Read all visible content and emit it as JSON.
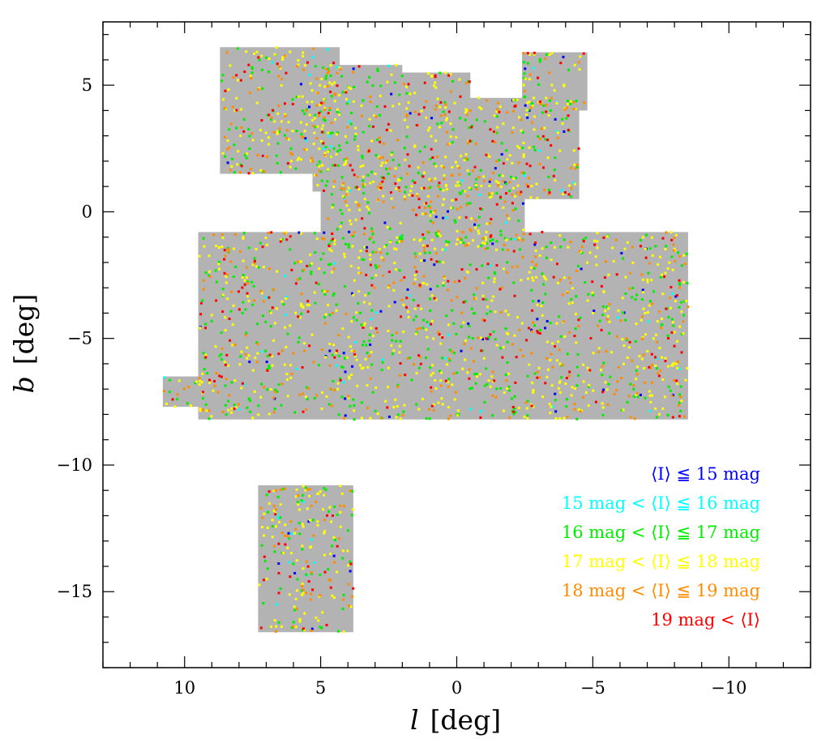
{
  "chart_data": {
    "type": "scatter",
    "xlabel": "l",
    "xlabel_unit": "[deg]",
    "ylabel": "b",
    "ylabel_unit": "[deg]",
    "xlim": [
      13,
      -13
    ],
    "ylim": [
      -18,
      7.5
    ],
    "x_reversed": true,
    "xticks": [
      10,
      5,
      0,
      -5,
      -10
    ],
    "xtick_labels": [
      "10",
      "5",
      "0",
      "−5",
      "−10"
    ],
    "yticks": [
      5,
      0,
      -5,
      -10,
      -15
    ],
    "ytick_labels": [
      "5",
      "0",
      "−5",
      "−10",
      "−15"
    ],
    "footprint_color": "#b3b3b3",
    "legend_position": "lower-right",
    "series": [
      {
        "name": "⟨I⟩ ≦ 15 mag",
        "color": "#0000ff"
      },
      {
        "name": "15 mag < ⟨I⟩ ≦ 16 mag",
        "color": "#00ffff"
      },
      {
        "name": "16 mag < ⟨I⟩ ≦ 17 mag",
        "color": "#00ee00"
      },
      {
        "name": "17 mag < ⟨I⟩ ≦ 18 mag",
        "color": "#ffff00"
      },
      {
        "name": "18 mag < ⟨I⟩ ≦ 19 mag",
        "color": "#ff8c00"
      },
      {
        "name": "19 mag < ⟨I⟩",
        "color": "#ff0000"
      }
    ],
    "footprint_regions": [
      {
        "l": [
          8.7,
          4.3
        ],
        "b": [
          1.5,
          6.5
        ]
      },
      {
        "l": [
          5.3,
          2.0
        ],
        "b": [
          0.8,
          5.8
        ]
      },
      {
        "l": [
          2.0,
          -0.5
        ],
        "b": [
          0.0,
          5.5
        ]
      },
      {
        "l": [
          -0.3,
          -4.5
        ],
        "b": [
          0.5,
          4.5
        ]
      },
      {
        "l": [
          -2.4,
          -4.8
        ],
        "b": [
          4.0,
          6.3
        ]
      },
      {
        "l": [
          5.0,
          -2.5
        ],
        "b": [
          -1.5,
          1.5
        ]
      },
      {
        "l": [
          9.5,
          -8.5
        ],
        "b": [
          -8.2,
          -0.8
        ]
      },
      {
        "l": [
          10.8,
          9.2
        ],
        "b": [
          -7.7,
          -6.5
        ]
      },
      {
        "l": [
          7.3,
          3.8
        ],
        "b": [
          -16.6,
          -10.8
        ]
      }
    ],
    "star_counts_by_series": [
      80,
      70,
      700,
      950,
      520,
      300
    ]
  }
}
